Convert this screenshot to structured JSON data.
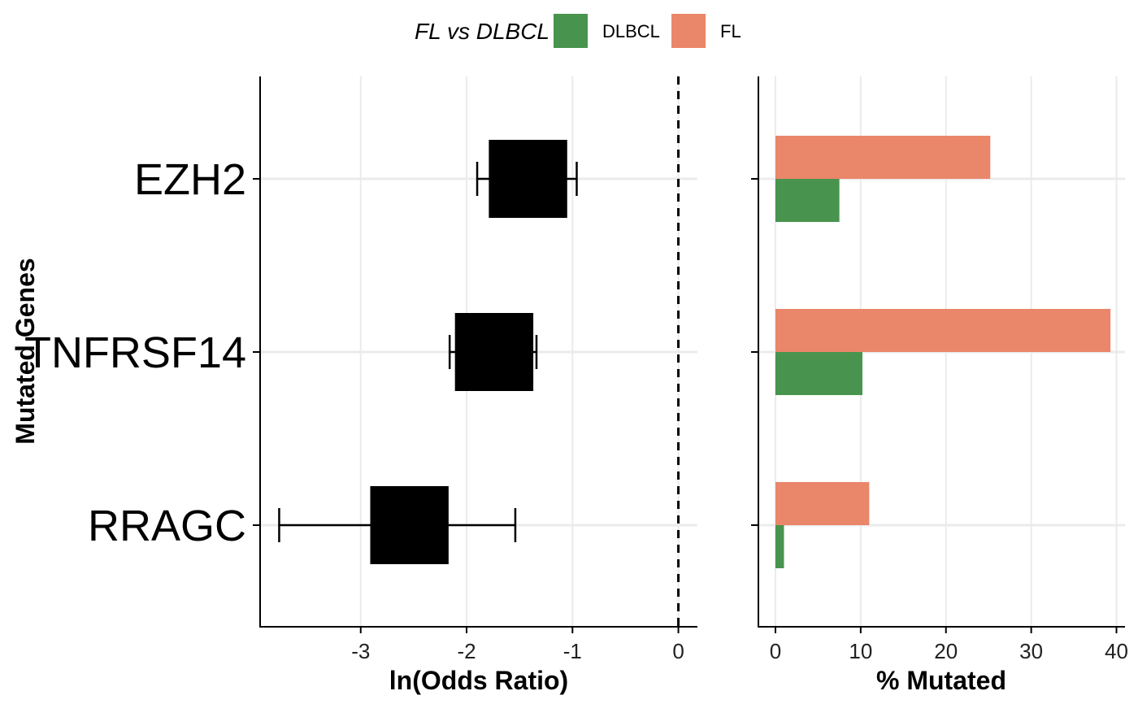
{
  "legend": {
    "title": "FL vs DLBCL",
    "items": [
      {
        "label": "DLBCL",
        "color": "#48944E"
      },
      {
        "label": "FL",
        "color": "#EA866A"
      }
    ]
  },
  "chart_data": [
    {
      "type": "forest",
      "xlabel": "ln(Odds Ratio)",
      "ylabel": "Mutated Genes",
      "xlim": [
        -3.95,
        0.18
      ],
      "xticks": [
        -3,
        -2,
        -1,
        0
      ],
      "reference_line": 0,
      "grid": true,
      "categories": [
        "EZH2",
        "TNFRSF14",
        "RRAGC"
      ],
      "estimate": [
        -1.42,
        -1.74,
        -2.54
      ],
      "box_low": [
        -1.79,
        -2.11,
        -2.91
      ],
      "box_high": [
        -1.05,
        -1.37,
        -2.17
      ],
      "ci_low": [
        -1.9,
        -2.16,
        -3.77
      ],
      "ci_high": [
        -0.96,
        -1.34,
        -1.54
      ]
    },
    {
      "type": "bar",
      "orientation": "horizontal",
      "xlabel": "% Mutated",
      "xlim": [
        -2,
        41
      ],
      "xticks": [
        0,
        10,
        20,
        30,
        40
      ],
      "grid": true,
      "legend_position": "top",
      "categories": [
        "EZH2",
        "TNFRSF14",
        "RRAGC"
      ],
      "series": [
        {
          "name": "DLBCL",
          "color": "#48944E",
          "values": [
            7.5,
            10.2,
            1.0
          ]
        },
        {
          "name": "FL",
          "color": "#EA866A",
          "values": [
            25.2,
            39.3,
            11.0
          ]
        }
      ]
    }
  ]
}
